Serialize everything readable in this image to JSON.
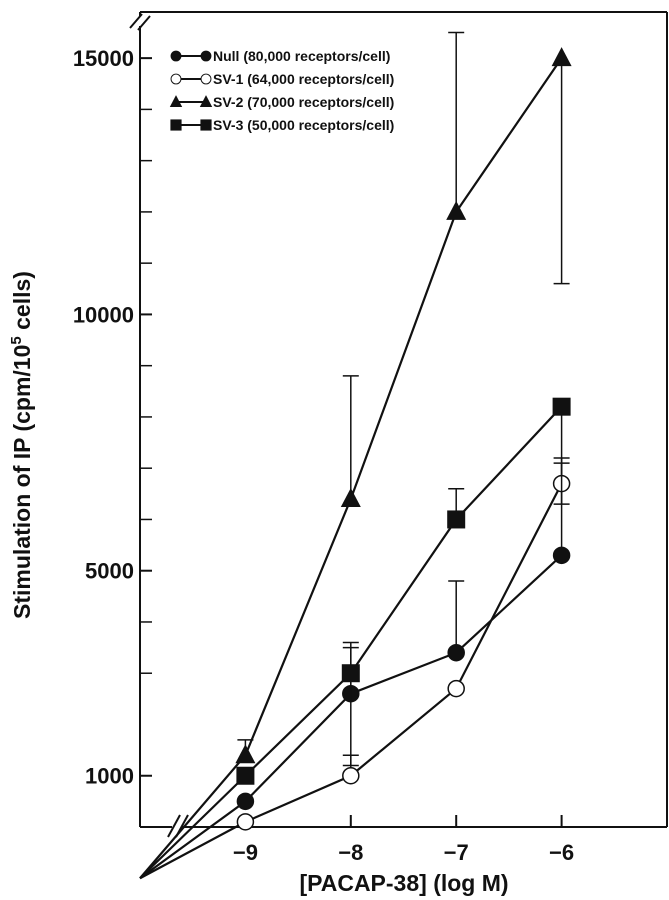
{
  "chart_data": {
    "type": "line",
    "xlabel": "[PACAP-38] (log M)",
    "ylabel_main": "Stimulation of IP (cpm/10",
    "ylabel_sup": "5",
    "ylabel_tail": " cells)",
    "x": [
      -10,
      -9,
      -8,
      -7,
      -6
    ],
    "xlim": [
      -10,
      -5
    ],
    "ylim": [
      0,
      15900
    ],
    "y_axis_break": true,
    "x_axis_break": true,
    "x_ticks": [
      {
        "value": -9,
        "label": "−9"
      },
      {
        "value": -8,
        "label": "−8"
      },
      {
        "value": -7,
        "label": "−7"
      },
      {
        "value": -6,
        "label": "−6"
      }
    ],
    "y_ticks": [
      {
        "value": 1000,
        "label": "1000"
      },
      {
        "value": 5000,
        "label": "5000"
      },
      {
        "value": 10000,
        "label": "10000"
      },
      {
        "value": 15000,
        "label": "15000"
      }
    ],
    "y_minor_ticks": [
      3000,
      4000,
      6000,
      7000,
      8000,
      9000,
      11000,
      12000,
      13000,
      14000
    ],
    "legend_position": "top-left",
    "series": [
      {
        "name": "Null (80,000 receptors/cell)",
        "marker": "circle-filled",
        "values": [
          -1000,
          500,
          2600,
          3400,
          5300
        ],
        "err_up": [
          null,
          null,
          900,
          1400,
          1800
        ],
        "err_down": [
          null,
          null,
          0,
          0,
          0
        ]
      },
      {
        "name": "SV-1 (64,000 receptors/cell)",
        "marker": "circle-open",
        "values": [
          -1000,
          100,
          1000,
          2700,
          6700
        ],
        "err_up": [
          null,
          null,
          400,
          0,
          500
        ],
        "err_down": [
          null,
          null,
          0,
          0,
          0
        ]
      },
      {
        "name": "SV-2 (70,000 receptors/cell)",
        "marker": "triangle-filled",
        "values": [
          -1000,
          1400,
          6400,
          12000,
          15000
        ],
        "err_up": [
          null,
          300,
          2400,
          3500,
          0
        ],
        "err_down": [
          null,
          0,
          0,
          0,
          4400
        ]
      },
      {
        "name": "SV-3 (50,000 receptors/cell)",
        "marker": "square-filled",
        "values": [
          -1000,
          1000,
          3000,
          6000,
          8200
        ],
        "err_up": [
          null,
          null,
          600,
          600,
          0
        ],
        "err_down": [
          null,
          null,
          1800,
          0,
          1900
        ]
      }
    ]
  }
}
